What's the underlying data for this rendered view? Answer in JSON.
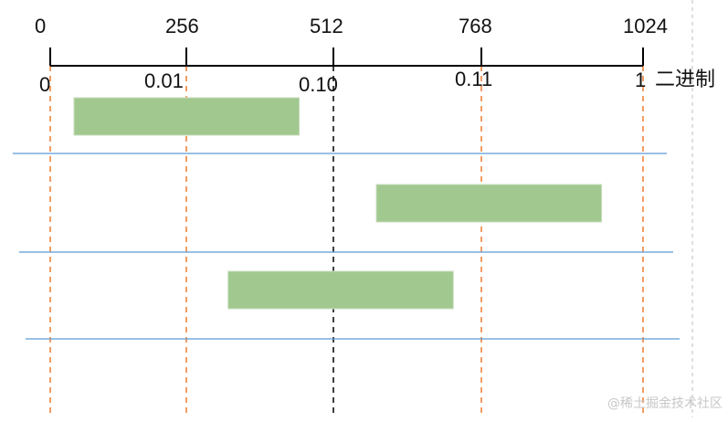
{
  "top_scale": [
    "0",
    "256",
    "512",
    "768",
    "1024"
  ],
  "binary_scale": [
    "0",
    "0.01",
    "0.10",
    "0.11",
    "1"
  ],
  "binary_label": "二进制",
  "watermark": "@稀土掘金技术社区",
  "colors": {
    "axis": "#000000",
    "guide_dashed": "#ed7d31",
    "center_dashed": "#000000",
    "bar_fill": "#a1c98f",
    "separator": "#5b9bd5",
    "right_edge": "#bfbfbf"
  },
  "intervals": [
    {
      "start": 0.04,
      "end": 0.42
    },
    {
      "start": 0.55,
      "end": 0.93
    },
    {
      "start": 0.3,
      "end": 0.68
    }
  ]
}
